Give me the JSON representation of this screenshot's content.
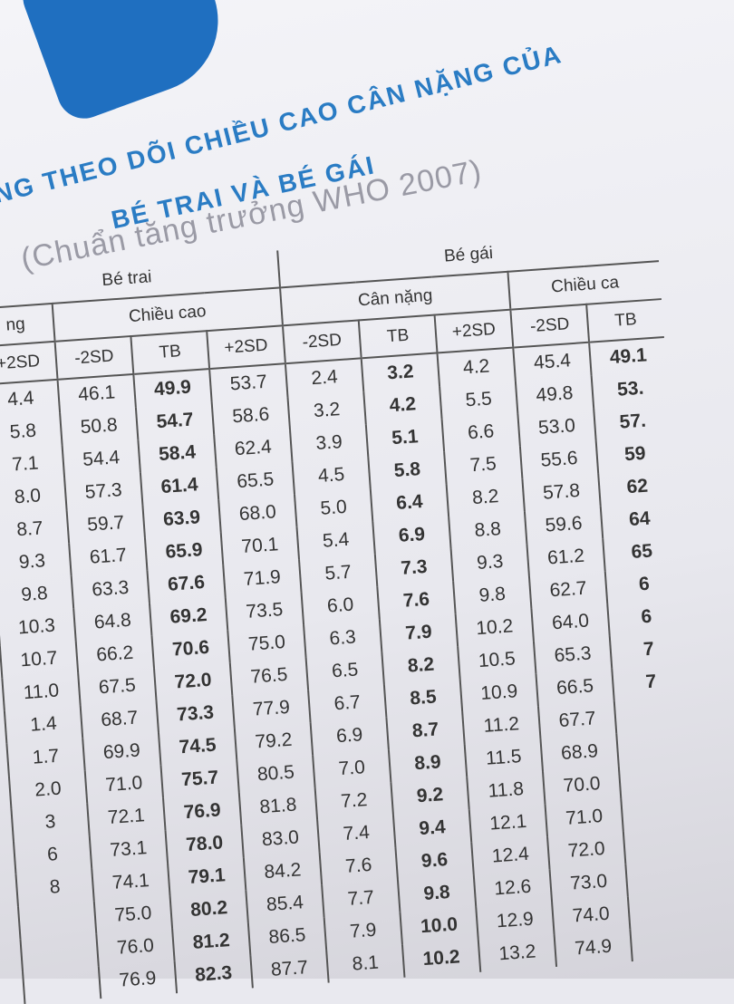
{
  "header": {
    "title_line1": "NG THEO DÕI CHIỀU CAO CÂN NẶNG CỦA",
    "title_line2": "BÉ TRAI VÀ BÉ GÁI",
    "subtitle": "(Chuẩn tăng trưởng WHO 2007)"
  },
  "table": {
    "groups": [
      {
        "label": "Bé trai",
        "span": 4
      },
      {
        "label": "Bé gái",
        "span": 5
      }
    ],
    "subgroups": [
      {
        "label": "ng",
        "span": 1
      },
      {
        "label": "Chiều cao",
        "span": 3
      },
      {
        "label": "Cân nặng",
        "span": 3
      },
      {
        "label": "Chiều ca",
        "span": 2
      }
    ],
    "columns": [
      "+2SD",
      "-2SD",
      "TB",
      "+2SD",
      "-2SD",
      "TB",
      "+2SD",
      "-2SD",
      "TB"
    ],
    "rows": [
      [
        "4.4",
        "46.1",
        "49.9",
        "53.7",
        "2.4",
        "3.2",
        "4.2",
        "45.4",
        "49.1"
      ],
      [
        "5.8",
        "50.8",
        "54.7",
        "58.6",
        "3.2",
        "4.2",
        "5.5",
        "49.8",
        "53."
      ],
      [
        "7.1",
        "54.4",
        "58.4",
        "62.4",
        "3.9",
        "5.1",
        "6.6",
        "53.0",
        "57."
      ],
      [
        "8.0",
        "57.3",
        "61.4",
        "65.5",
        "4.5",
        "5.8",
        "7.5",
        "55.6",
        "59"
      ],
      [
        "8.7",
        "59.7",
        "63.9",
        "68.0",
        "5.0",
        "6.4",
        "8.2",
        "57.8",
        "62"
      ],
      [
        "9.3",
        "61.7",
        "65.9",
        "70.1",
        "5.4",
        "6.9",
        "8.8",
        "59.6",
        "64"
      ],
      [
        "9.8",
        "63.3",
        "67.6",
        "71.9",
        "5.7",
        "7.3",
        "9.3",
        "61.2",
        "65"
      ],
      [
        "10.3",
        "64.8",
        "69.2",
        "73.5",
        "6.0",
        "7.6",
        "9.8",
        "62.7",
        "6"
      ],
      [
        "10.7",
        "66.2",
        "70.6",
        "75.0",
        "6.3",
        "7.9",
        "10.2",
        "64.0",
        "6"
      ],
      [
        "11.0",
        "67.5",
        "72.0",
        "76.5",
        "6.5",
        "8.2",
        "10.5",
        "65.3",
        "7"
      ],
      [
        "1.4",
        "68.7",
        "73.3",
        "77.9",
        "6.7",
        "8.5",
        "10.9",
        "66.5",
        "7"
      ],
      [
        "1.7",
        "69.9",
        "74.5",
        "79.2",
        "6.9",
        "8.7",
        "11.2",
        "67.7",
        null
      ],
      [
        "2.0",
        "71.0",
        "75.7",
        "80.5",
        "7.0",
        "8.9",
        "11.5",
        "68.9",
        null
      ],
      [
        "3",
        "72.1",
        "76.9",
        "81.8",
        "7.2",
        "9.2",
        "11.8",
        "70.0",
        null
      ],
      [
        "6",
        "73.1",
        "78.0",
        "83.0",
        "7.4",
        "9.4",
        "12.1",
        "71.0",
        null
      ],
      [
        "8",
        "74.1",
        "79.1",
        "84.2",
        "7.6",
        "9.6",
        "12.4",
        "72.0",
        null
      ],
      [
        null,
        "75.0",
        "80.2",
        "85.4",
        "7.7",
        "9.8",
        "12.6",
        "73.0",
        null
      ],
      [
        null,
        "76.0",
        "81.2",
        "86.5",
        "7.9",
        "10.0",
        "12.9",
        "74.0",
        null
      ],
      [
        null,
        "76.9",
        "82.3",
        "87.7",
        "8.1",
        "10.2",
        "13.2",
        "74.9",
        null
      ]
    ]
  }
}
